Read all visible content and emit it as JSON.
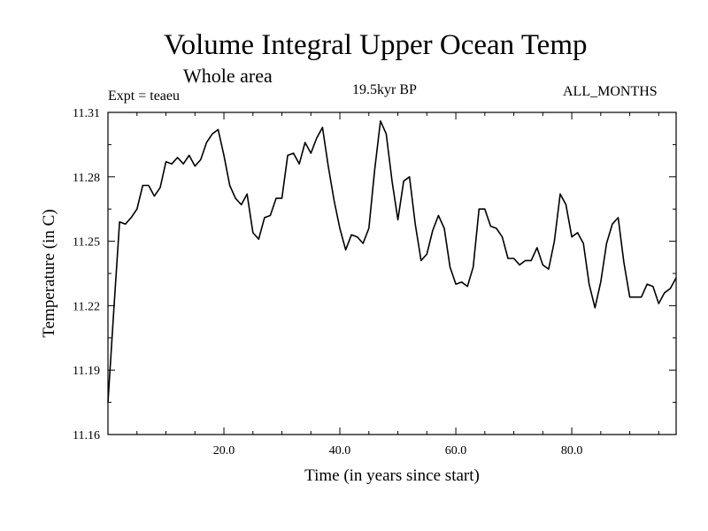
{
  "header": {
    "title": "Volume Integral Upper Ocean Temp",
    "subtitle": "Whole area",
    "experiment": "Expt = teaeu",
    "period": "19.5kyr BP",
    "months": "ALL_MONTHS"
  },
  "colors": {
    "line": "#000000",
    "axis": "#000000",
    "background": "#ffffff"
  },
  "chart_data": {
    "type": "line",
    "title": "Volume Integral Upper Ocean Temp",
    "subtitle": "Whole area",
    "xlabel": "Time (in years since start)",
    "ylabel": "Temperature (in C)",
    "xlim": [
      0,
      98
    ],
    "ylim": [
      11.16,
      11.31
    ],
    "xticks": [
      20,
      40,
      60,
      80
    ],
    "xtick_labels": [
      "20.0",
      "40.0",
      "60.0",
      "80.0"
    ],
    "yticks": [
      11.16,
      11.19,
      11.22,
      11.25,
      11.28,
      11.31
    ],
    "ytick_labels": [
      "11.16",
      "11.19",
      "11.22",
      "11.25",
      "11.28",
      "11.31"
    ],
    "grid": false,
    "series": [
      {
        "name": "Temperature",
        "x": [
          0,
          1,
          2,
          3,
          4,
          5,
          6,
          7,
          8,
          9,
          10,
          11,
          12,
          13,
          14,
          15,
          16,
          17,
          18,
          19,
          20,
          21,
          22,
          23,
          24,
          25,
          26,
          27,
          28,
          29,
          30,
          31,
          32,
          33,
          34,
          35,
          36,
          37,
          38,
          39,
          40,
          41,
          42,
          43,
          44,
          45,
          46,
          47,
          48,
          49,
          50,
          51,
          52,
          53,
          54,
          55,
          56,
          57,
          58,
          59,
          60,
          61,
          62,
          63,
          64,
          65,
          66,
          67,
          68,
          69,
          70,
          71,
          72,
          73,
          74,
          75,
          76,
          77,
          78,
          79,
          80,
          81,
          82,
          83,
          84,
          85,
          86,
          87,
          88,
          89,
          90,
          91,
          92,
          93,
          94,
          95,
          96,
          97,
          98
        ],
        "values": [
          11.175,
          11.218,
          11.259,
          11.258,
          11.261,
          11.265,
          11.276,
          11.276,
          11.271,
          11.275,
          11.287,
          11.286,
          11.289,
          11.286,
          11.29,
          11.285,
          11.288,
          11.296,
          11.3,
          11.302,
          11.29,
          11.276,
          11.27,
          11.267,
          11.272,
          11.254,
          11.251,
          11.261,
          11.262,
          11.27,
          11.27,
          11.29,
          11.291,
          11.286,
          11.296,
          11.291,
          11.298,
          11.303,
          11.285,
          11.269,
          11.256,
          11.246,
          11.253,
          11.252,
          11.249,
          11.256,
          11.283,
          11.306,
          11.3,
          11.278,
          11.26,
          11.278,
          11.28,
          11.258,
          11.241,
          11.244,
          11.255,
          11.262,
          11.256,
          11.238,
          11.23,
          11.231,
          11.229,
          11.238,
          11.265,
          11.265,
          11.257,
          11.256,
          11.252,
          11.242,
          11.242,
          11.239,
          11.241,
          11.241,
          11.247,
          11.239,
          11.237,
          11.25,
          11.272,
          11.267,
          11.252,
          11.254,
          11.249,
          11.23,
          11.219,
          11.231,
          11.249,
          11.258,
          11.261,
          11.24,
          11.224,
          11.224,
          11.224,
          11.23,
          11.229,
          11.221,
          11.226,
          11.228,
          11.233
        ]
      }
    ]
  }
}
